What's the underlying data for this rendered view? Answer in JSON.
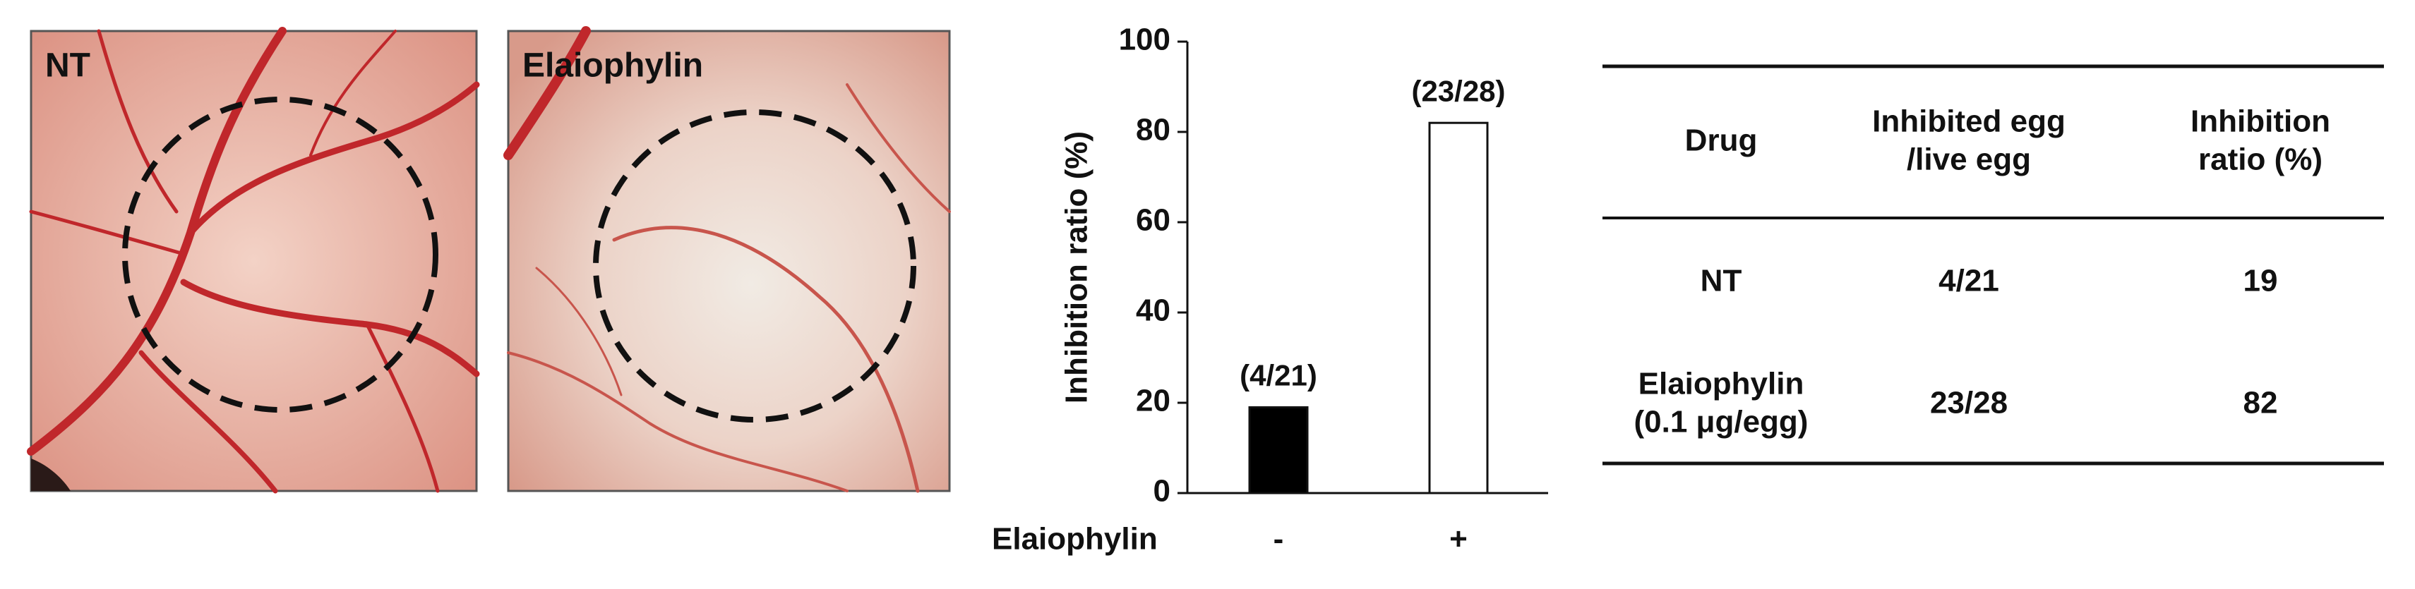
{
  "panels": [
    {
      "label": "NT"
    },
    {
      "label": "Elaiophylin"
    }
  ],
  "chart_data": {
    "type": "bar",
    "categories": [
      "-",
      "+"
    ],
    "values": [
      19,
      82
    ],
    "value_labels": [
      "(4/21)",
      "(23/28)"
    ],
    "colors": [
      "#000000",
      "#ffffff"
    ],
    "xlabel": "Elaiophylin",
    "ylabel": "Inhibition ratio (%)",
    "ylim": [
      0,
      100
    ],
    "yticks": [
      0,
      20,
      40,
      60,
      80,
      100
    ],
    "grid": false
  },
  "table": {
    "header": [
      [
        "Drug"
      ],
      [
        "Inhibited egg",
        "/live egg"
      ],
      [
        "Inhibition",
        "ratio (%)"
      ]
    ],
    "rows": [
      [
        [
          "NT"
        ],
        [
          "4/21"
        ],
        [
          "19"
        ]
      ],
      [
        [
          "Elaiophylin",
          "(0.1 μg/egg)"
        ],
        [
          "23/28"
        ],
        [
          "82"
        ]
      ]
    ]
  }
}
